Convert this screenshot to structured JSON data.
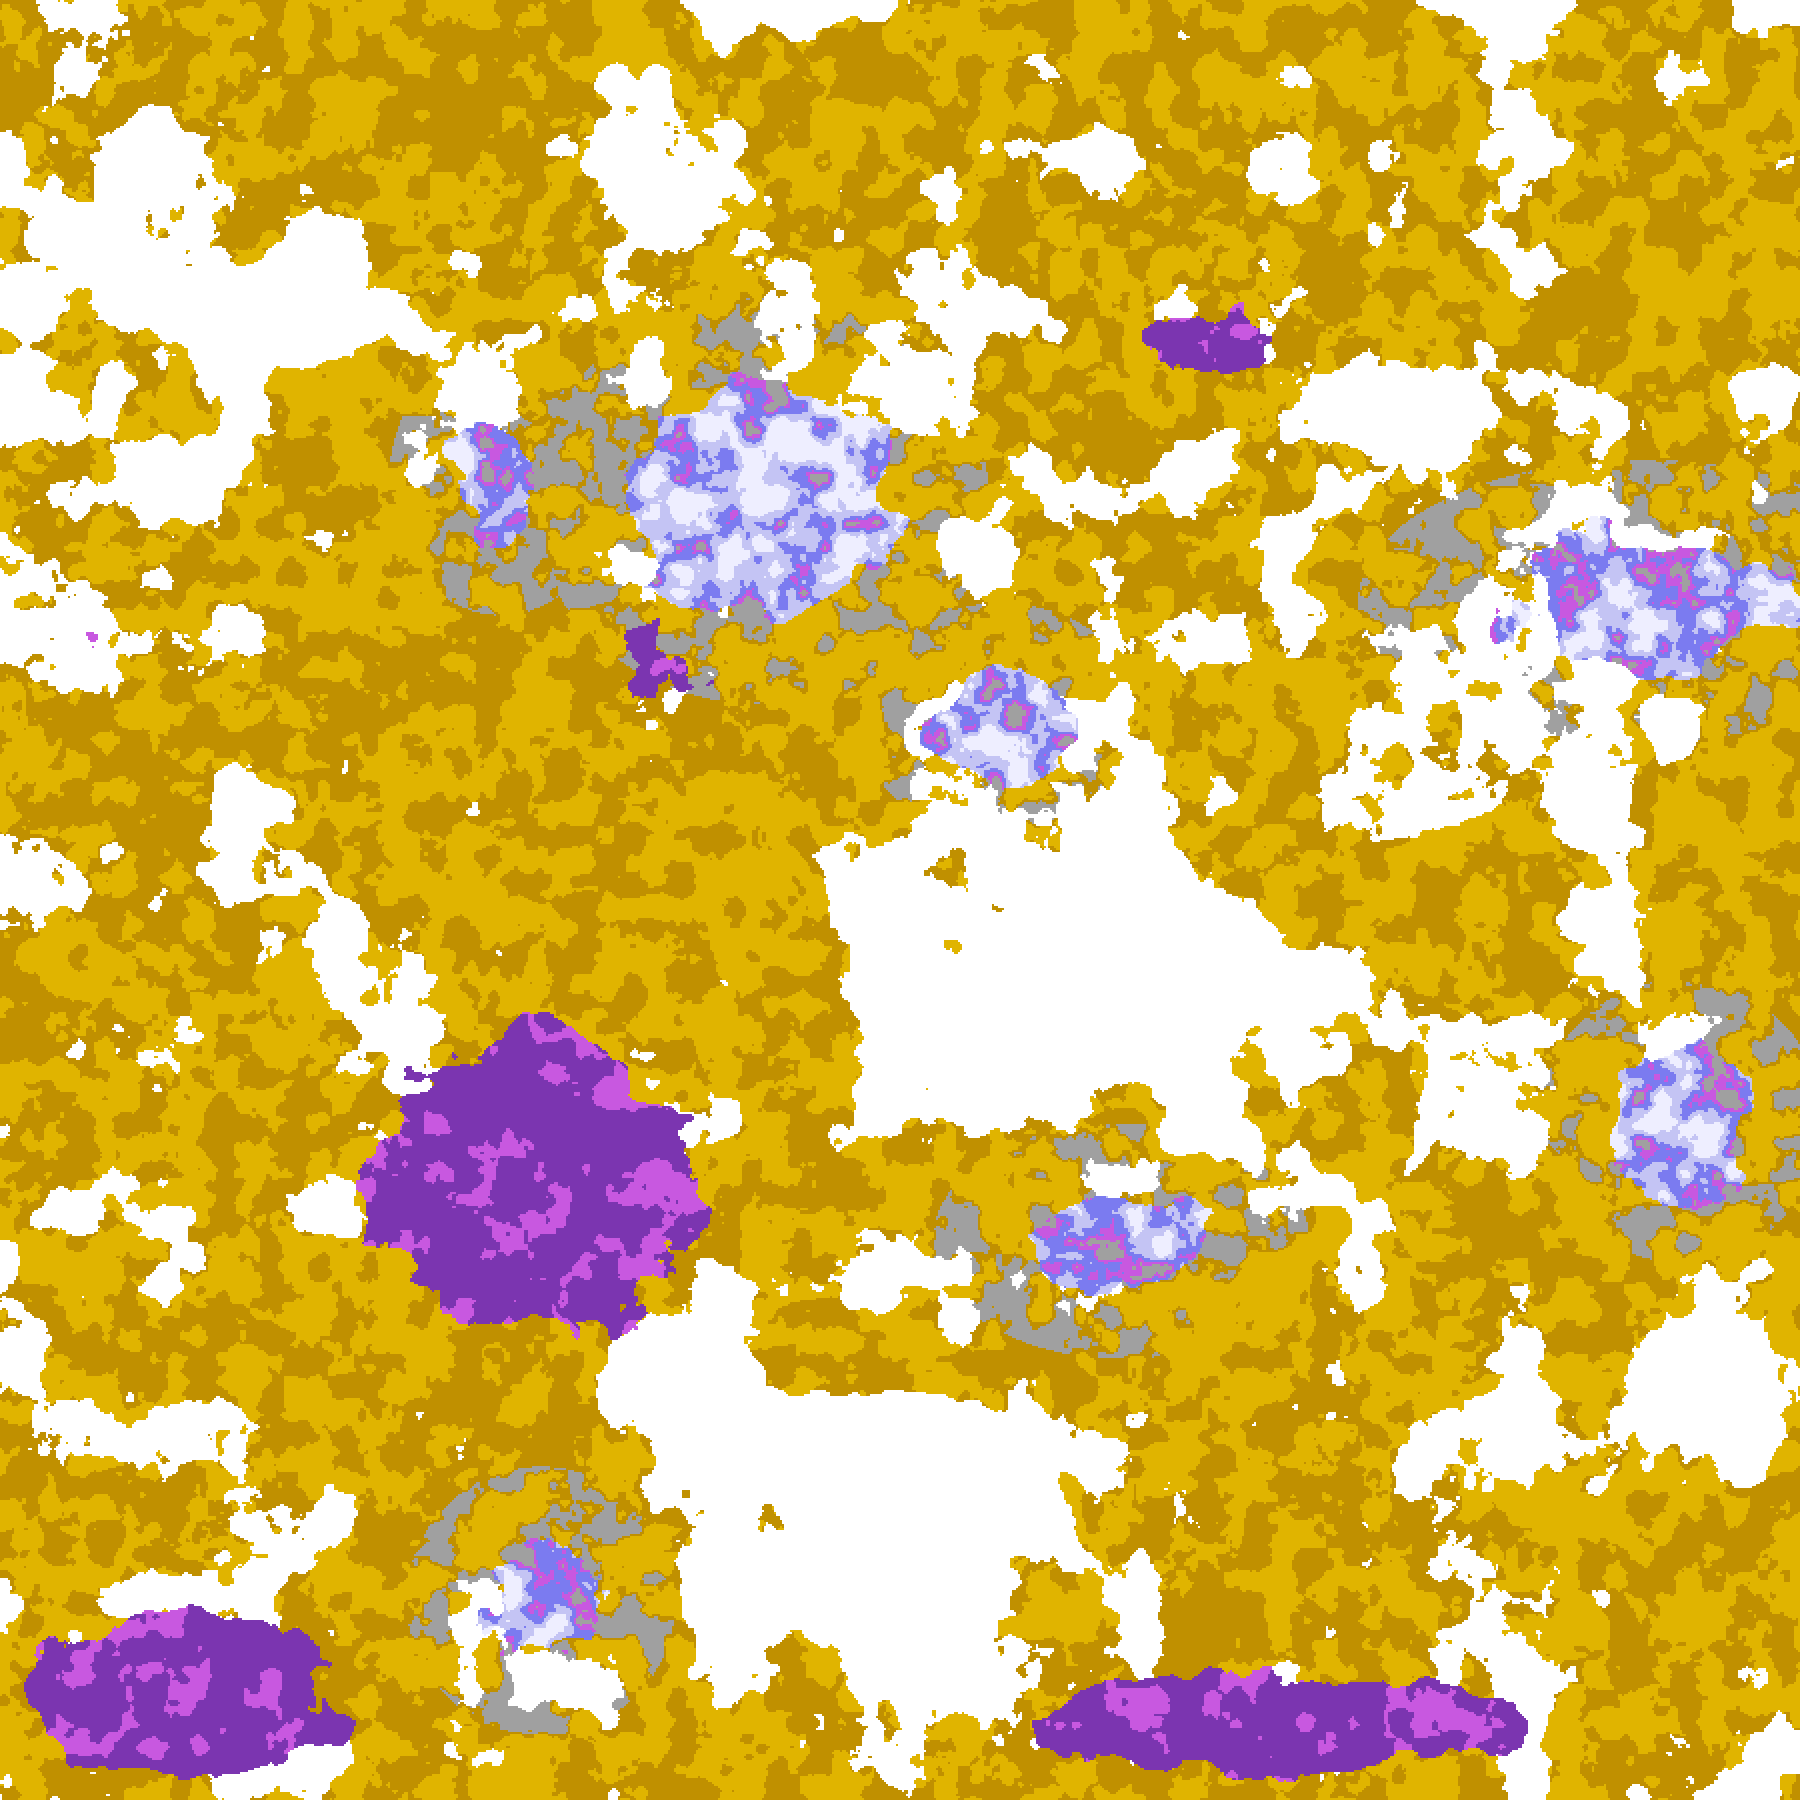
{
  "map": {
    "type": "classified raster",
    "palette": {
      "background": "#ffffff",
      "gold": "#e0b400",
      "dark_gold": "#c09000",
      "purple": "#7b35b0",
      "magenta": "#c858e0",
      "periwinkle": "#7b7bf0",
      "lavender": "#eeeeff",
      "light_blue": "#c4c4f4",
      "gray": "#a0a0a0"
    }
  }
}
